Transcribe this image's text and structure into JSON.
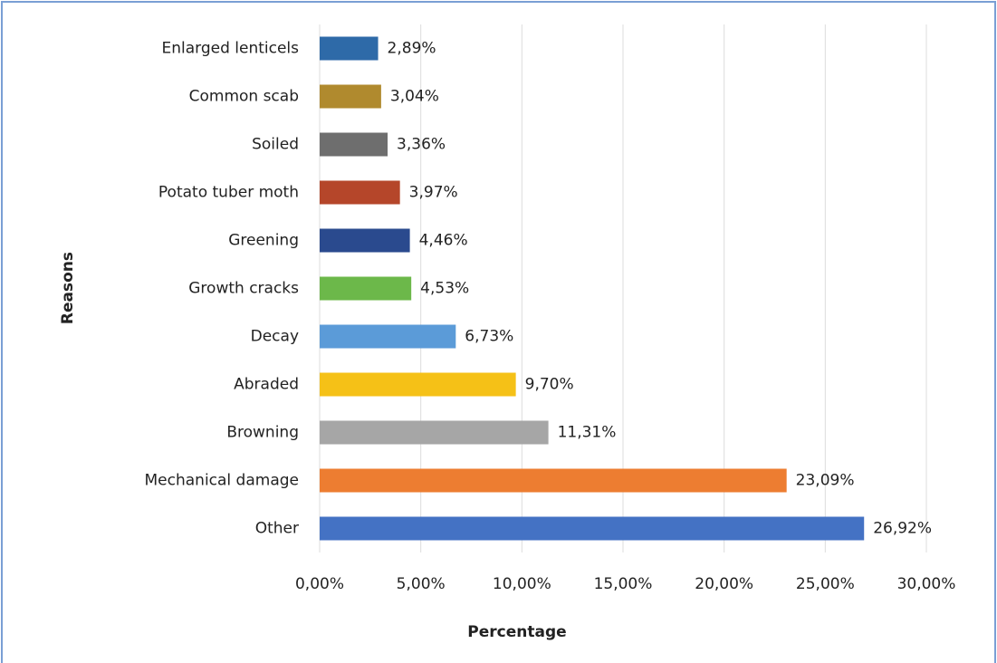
{
  "chart_data": {
    "type": "hbar",
    "categories": [
      "Enlarged lenticels",
      "Common scab",
      "Soiled",
      "Potato tuber moth",
      "Greening",
      "Growth cracks",
      "Decay",
      "Abraded",
      "Browning",
      "Mechanical damage",
      "Other"
    ],
    "values": [
      2.89,
      3.04,
      3.36,
      3.97,
      4.46,
      4.53,
      6.73,
      9.7,
      11.31,
      23.09,
      26.92
    ],
    "value_labels": [
      "2,89%",
      "3,04%",
      "3,36%",
      "3,97%",
      "4,46%",
      "4,53%",
      "6,73%",
      "9,70%",
      "11,31%",
      "23,09%",
      "26,92%"
    ],
    "colors": [
      "#2e6aa8",
      "#b08a2e",
      "#6e6e6e",
      "#b5462a",
      "#2a4a8e",
      "#6cb84a",
      "#5b9bd8",
      "#f5c117",
      "#a6a6a6",
      "#ed7d31",
      "#4472c4"
    ],
    "xlim": [
      0,
      30
    ],
    "xticks": [
      {
        "value": 0,
        "label": "0,00%"
      },
      {
        "value": 5,
        "label": "5,00%"
      },
      {
        "value": 10,
        "label": "10,00%"
      },
      {
        "value": 15,
        "label": "15,00%"
      },
      {
        "value": 20,
        "label": "20,00%"
      },
      {
        "value": 25,
        "label": "25,00%"
      },
      {
        "value": 30,
        "label": "30,00%"
      }
    ],
    "grid": true,
    "xlabel": "Percentage",
    "ylabel": "Reasons"
  }
}
